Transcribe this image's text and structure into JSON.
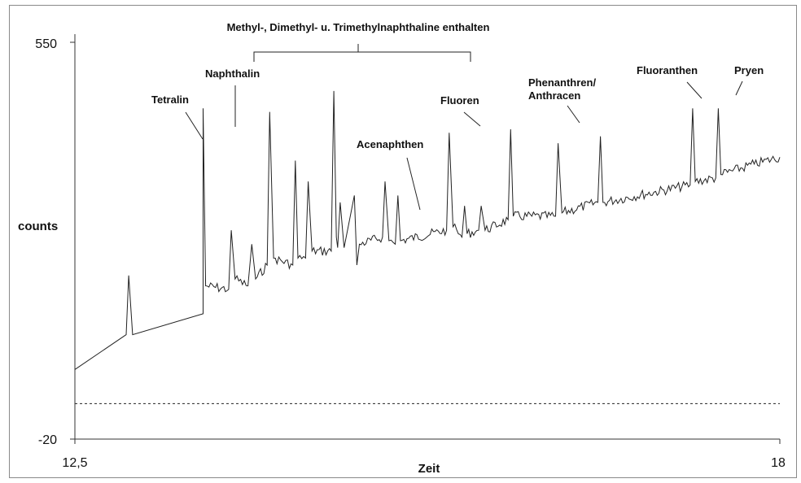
{
  "chart_data": {
    "type": "line",
    "xlabel": "Zeit",
    "ylabel": "counts",
    "xlim": [
      12.5,
      18
    ],
    "ylim": [
      -20,
      550
    ],
    "x_tick_labels": [
      "12,5",
      "18"
    ],
    "y_tick_labels": [
      "550",
      "-20"
    ],
    "baseline_value": 31,
    "grid": false,
    "legend": "none",
    "series": [
      {
        "line_color": "#222222",
        "x": [
          12.5,
          12.9,
          12.92,
          12.95,
          13.5,
          13.5,
          13.52,
          13.7,
          13.72,
          13.75,
          13.85,
          13.88,
          13.91,
          14.0,
          14.02,
          14.05,
          14.2,
          14.22,
          14.24,
          14.3,
          14.32,
          14.35,
          14.5,
          14.52,
          14.54,
          14.55,
          14.57,
          14.6,
          14.68,
          14.7,
          14.72,
          14.9,
          14.92,
          14.95,
          15.0,
          15.02,
          15.04,
          15.4,
          15.42,
          15.45,
          15.52,
          15.54,
          15.56,
          15.65,
          15.67,
          15.7,
          15.88,
          15.9,
          15.92,
          16.25,
          16.27,
          16.3,
          16.58,
          16.6,
          16.62,
          17.3,
          17.32,
          17.34,
          17.5,
          17.52,
          17.54,
          17.8,
          18.0
        ],
        "y": [
          80,
          130,
          215,
          130,
          160,
          455,
          200,
          195,
          280,
          210,
          200,
          260,
          210,
          230,
          450,
          240,
          230,
          380,
          240,
          240,
          350,
          250,
          250,
          480,
          270,
          255,
          320,
          255,
          330,
          230,
          260,
          270,
          350,
          265,
          260,
          330,
          265,
          280,
          420,
          285,
          270,
          315,
          275,
          280,
          315,
          280,
          295,
          425,
          300,
          300,
          405,
          305,
          320,
          415,
          320,
          345,
          455,
          350,
          355,
          455,
          360,
          375,
          385
        ]
      }
    ],
    "annotations": [
      {
        "text": "Tetralin",
        "x": 13.5
      },
      {
        "text": "Naphthalin",
        "x": 13.71
      },
      {
        "text": "Methyl-, Dimethyl- u. Trimethylnaphthaline enthalten",
        "x_range": [
          13.85,
          15.75
        ]
      },
      {
        "text": "Acenaphthen",
        "x": 15.1
      },
      {
        "text": "Fluoren",
        "x": 15.9
      },
      {
        "text": "Phenanthren/",
        "x": 16.6
      },
      {
        "text": "Anthracen",
        "x": 16.6
      },
      {
        "text": "Fluoranthen",
        "x": 17.32
      },
      {
        "text": "Pryen",
        "x": 17.52
      }
    ]
  }
}
